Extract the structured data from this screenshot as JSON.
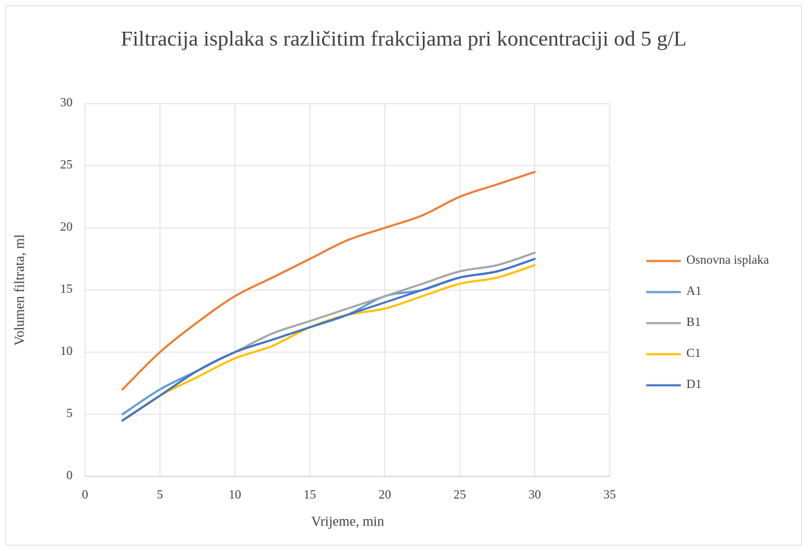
{
  "chart_data": {
    "type": "line",
    "title": "Filtracija isplaka s različitim frakcijama pri koncentraciji od 5 g/L",
    "x_label": "Vrijeme, min",
    "y_label": "Volumen filtrata, ml",
    "x": [
      2.5,
      5,
      7.5,
      10,
      12.5,
      15,
      17.5,
      20,
      22.5,
      25,
      27.5,
      30
    ],
    "series": [
      {
        "name": "Osnovna isplaka",
        "color": "#ED7D31",
        "values": [
          7,
          10,
          12.4,
          14.5,
          16,
          17.5,
          19,
          20,
          21,
          22.5,
          23.5,
          24.5
        ]
      },
      {
        "name": "A1",
        "color": "#5B9BD5",
        "values": [
          5,
          7,
          8.5,
          10,
          11,
          12,
          13,
          14.5,
          15,
          16,
          16.5,
          17.5
        ]
      },
      {
        "name": "B1",
        "color": "#A5A5A5",
        "values": [
          4.5,
          6.5,
          8.5,
          10,
          11.5,
          12.5,
          13.5,
          14.5,
          15.5,
          16.5,
          17,
          18
        ]
      },
      {
        "name": "C1",
        "color": "#FFC000",
        "values": [
          4.5,
          6.5,
          8,
          9.5,
          10.5,
          12,
          13,
          13.5,
          14.5,
          15.5,
          16,
          17
        ]
      },
      {
        "name": "D1",
        "color": "#4472C4",
        "values": [
          4.5,
          6.5,
          8.5,
          10,
          11,
          12,
          13,
          14,
          15,
          16,
          16.5,
          17.5
        ]
      }
    ],
    "xlim": [
      0,
      35
    ],
    "xticks": [
      0,
      5,
      10,
      15,
      20,
      25,
      30,
      35
    ],
    "ylim": [
      0,
      30
    ],
    "yticks": [
      0,
      5,
      10,
      15,
      20,
      25,
      30
    ],
    "grid": true,
    "legend": "right",
    "smooth": true
  }
}
